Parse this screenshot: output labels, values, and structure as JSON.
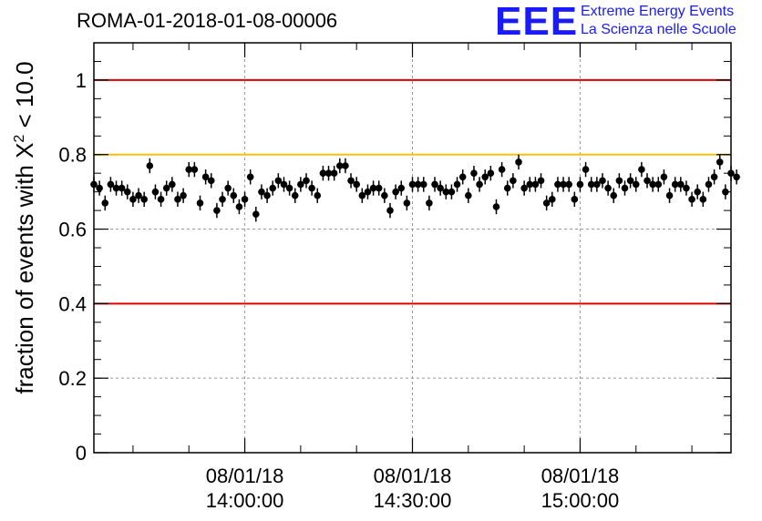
{
  "header": {
    "title": "ROMA-01-2018-01-08-00006",
    "logo_mark": "EEE",
    "logo_line1": "Extreme Energy Events",
    "logo_line2": "La Scienza nelle Scuole"
  },
  "colors": {
    "limit_red": "#e00000",
    "limit_orange": "#ffc000",
    "marker": "#000000",
    "brand_blue": "#1a1aff",
    "grid": "#999999"
  },
  "chart_data": {
    "type": "scatter",
    "title": "ROMA-01-2018-01-08-00006",
    "ylabel_main": "fraction of events with Χ",
    "ylabel_sup": "2",
    "ylabel_tail": " < 10.0",
    "xlabel": "",
    "ylim": [
      0,
      1.1
    ],
    "yticks": [
      0,
      0.2,
      0.4,
      0.6,
      0.8,
      1
    ],
    "yticklabels": [
      "0",
      "0.2",
      "0.4",
      "0.6",
      "0.8",
      "1"
    ],
    "xlim": [
      "08/01/18 13:33:00",
      "08/01/18 15:27:00"
    ],
    "xticks": [
      {
        "date": "08/01/18",
        "time": "14:00:00"
      },
      {
        "date": "08/01/18",
        "time": "14:30:00"
      },
      {
        "date": "08/01/18",
        "time": "15:00:00"
      }
    ],
    "grid": true,
    "reference_lines": [
      {
        "y": 1.0,
        "color": "red"
      },
      {
        "y": 0.8,
        "color": "orange"
      },
      {
        "y": 0.4,
        "color": "red"
      }
    ],
    "error_bar": 0.02,
    "x_start": "08/01/18 13:33:00",
    "x_step_seconds": 60,
    "values": [
      0.72,
      0.71,
      0.67,
      0.72,
      0.71,
      0.71,
      0.7,
      0.68,
      0.69,
      0.68,
      0.77,
      0.7,
      0.68,
      0.71,
      0.72,
      0.68,
      0.69,
      0.76,
      0.76,
      0.67,
      0.74,
      0.73,
      0.65,
      0.68,
      0.71,
      0.69,
      0.66,
      0.68,
      0.74,
      0.64,
      0.7,
      0.69,
      0.71,
      0.73,
      0.72,
      0.71,
      0.69,
      0.72,
      0.73,
      0.71,
      0.69,
      0.75,
      0.75,
      0.75,
      0.77,
      0.77,
      0.73,
      0.72,
      0.69,
      0.7,
      0.71,
      0.71,
      0.69,
      0.65,
      0.7,
      0.71,
      0.67,
      0.72,
      0.72,
      0.72,
      0.67,
      0.72,
      0.71,
      0.7,
      0.7,
      0.72,
      0.74,
      0.69,
      0.75,
      0.72,
      0.74,
      0.75,
      0.66,
      0.76,
      0.71,
      0.73,
      0.78,
      0.71,
      0.72,
      0.72,
      0.73,
      0.67,
      0.68,
      0.72,
      0.72,
      0.72,
      0.68,
      0.72,
      0.76,
      0.72,
      0.72,
      0.73,
      0.71,
      0.69,
      0.73,
      0.71,
      0.73,
      0.72,
      0.76,
      0.73,
      0.72,
      0.72,
      0.74,
      0.69,
      0.72,
      0.72,
      0.71,
      0.68,
      0.7,
      0.68,
      0.72,
      0.74,
      0.78,
      0.7,
      0.75,
      0.74
    ]
  }
}
